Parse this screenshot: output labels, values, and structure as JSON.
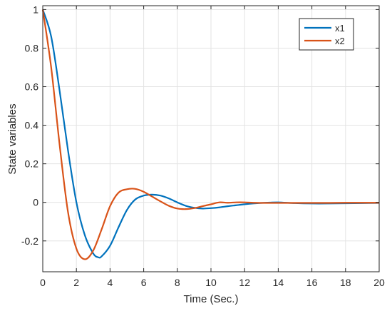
{
  "chart_data": {
    "type": "line",
    "title": "",
    "xlabel": "Time (Sec.)",
    "ylabel": "State variables",
    "xlim": [
      0,
      20
    ],
    "ylim": [
      -0.36,
      1.02
    ],
    "xticks": [
      0,
      2,
      4,
      6,
      8,
      10,
      12,
      14,
      16,
      18,
      20
    ],
    "yticks": [
      -0.2,
      0,
      0.2,
      0.4,
      0.6,
      0.8,
      1
    ],
    "xtick_labels": [
      "0",
      "2",
      "4",
      "6",
      "8",
      "10",
      "12",
      "14",
      "16",
      "18",
      "20"
    ],
    "ytick_labels": [
      "-0.2",
      "0",
      "0.2",
      "0.4",
      "0.6",
      "0.8",
      "1"
    ],
    "grid": true,
    "legend_position": "top-right",
    "series": [
      {
        "name": "x1",
        "color": "#0072BD",
        "x": [
          0,
          0.5,
          1,
          1.5,
          2,
          2.5,
          3,
          3.3,
          3.5,
          4,
          4.5,
          5,
          5.5,
          6,
          6.5,
          7,
          7.5,
          8,
          8.5,
          9,
          9.5,
          10,
          10.5,
          11,
          11.5,
          12,
          12.5,
          13,
          13.5,
          14,
          15,
          16,
          17,
          18,
          19,
          20
        ],
        "y": [
          1,
          0.86,
          0.58,
          0.27,
          0.0,
          -0.17,
          -0.265,
          -0.285,
          -0.28,
          -0.225,
          -0.13,
          -0.04,
          0.015,
          0.035,
          0.04,
          0.035,
          0.02,
          0.0,
          -0.018,
          -0.028,
          -0.032,
          -0.03,
          -0.026,
          -0.02,
          -0.015,
          -0.01,
          -0.006,
          -0.003,
          -0.001,
          0.0,
          -0.004,
          -0.006,
          -0.006,
          -0.005,
          -0.004,
          -0.003
        ]
      },
      {
        "name": "x2",
        "color": "#D95319",
        "x": [
          0,
          0.5,
          1,
          1.5,
          2,
          2.5,
          3,
          3.5,
          4,
          4.5,
          5,
          5.5,
          6,
          6.5,
          7,
          7.5,
          8,
          8.5,
          9,
          9.5,
          10,
          10.5,
          11,
          11.5,
          12,
          12.5,
          13,
          13.5,
          14,
          15,
          16,
          17,
          18,
          19,
          20
        ],
        "y": [
          1,
          0.7,
          0.3,
          -0.05,
          -0.24,
          -0.295,
          -0.25,
          -0.14,
          -0.02,
          0.05,
          0.068,
          0.07,
          0.055,
          0.03,
          0.005,
          -0.018,
          -0.032,
          -0.035,
          -0.03,
          -0.02,
          -0.01,
          0.0,
          -0.002,
          0.0,
          0.0,
          -0.002,
          -0.003,
          -0.003,
          -0.003,
          -0.003,
          -0.003,
          -0.003,
          -0.002,
          -0.002,
          -0.002
        ]
      }
    ]
  }
}
